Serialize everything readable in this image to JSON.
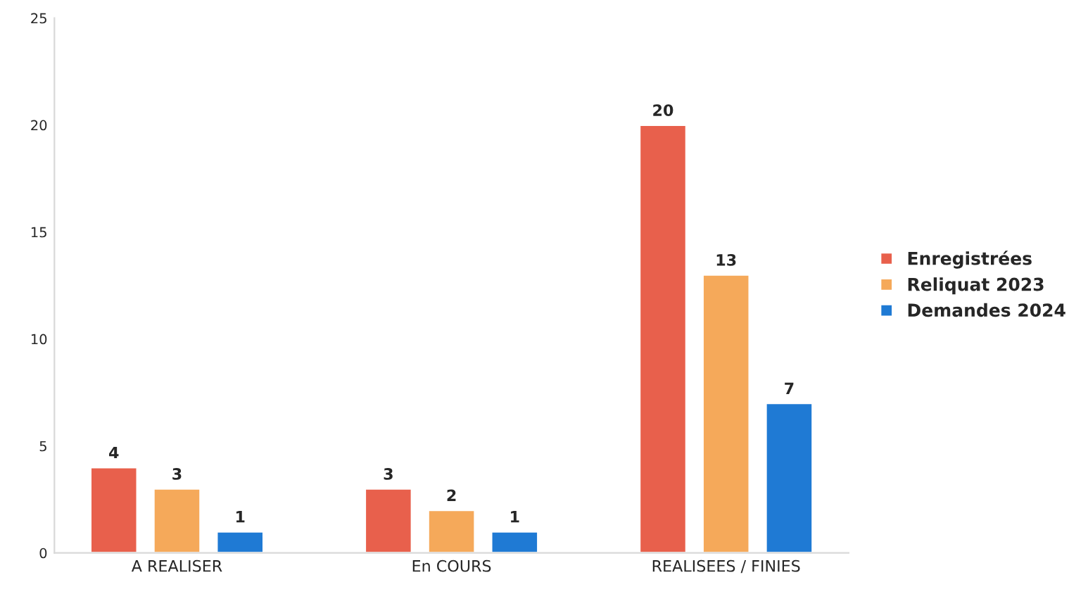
{
  "chart_data": {
    "type": "bar",
    "categories": [
      "A REALISER",
      "En COURS",
      "REALISEES / FINIES"
    ],
    "series": [
      {
        "name": "Enregistrées",
        "color": "#e8604c",
        "values": [
          4,
          3,
          20
        ]
      },
      {
        "name": "Reliquat 2023",
        "color": "#f5a95a",
        "values": [
          3,
          2,
          13
        ]
      },
      {
        "name": "Demandes 2024",
        "color": "#1f7ad4",
        "values": [
          1,
          1,
          7
        ]
      }
    ],
    "ylim": [
      0,
      25
    ],
    "yticks": [
      0,
      5,
      10,
      15,
      20,
      25
    ],
    "grid": false,
    "legend": "right",
    "data_labels": true
  }
}
